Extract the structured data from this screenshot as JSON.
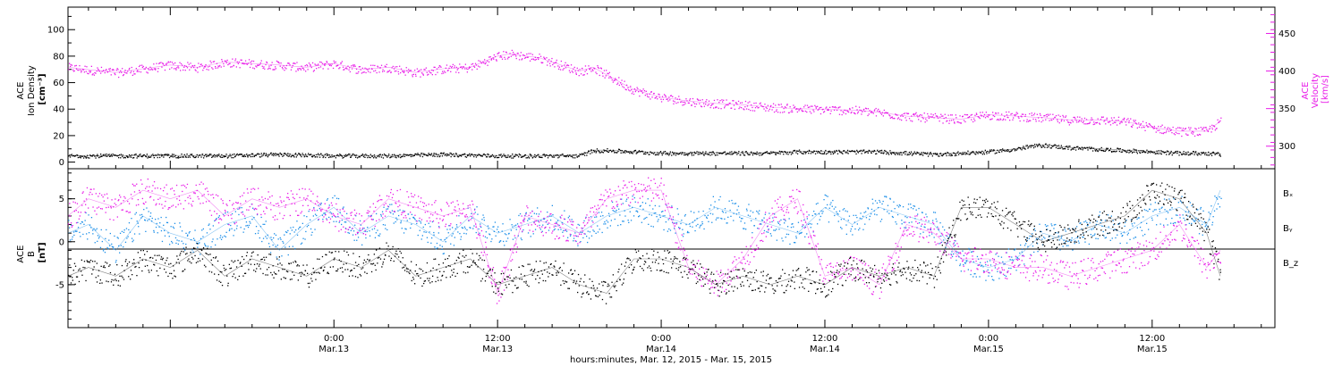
{
  "figure": {
    "xlabel": "hours:minutes, Mar. 12, 2015 - Mar. 15, 2015"
  },
  "chart_data": [
    {
      "type": "scatter",
      "panel": "top",
      "ylabel_left": [
        "ACE",
        "Ion Density",
        "[cm⁻³]"
      ],
      "ylabel_right": [
        "ACE",
        "Velocity",
        "[km/s]"
      ],
      "x_unit": "hours since 2015-03-12 00:00",
      "xlim": [
        4.5,
        93
      ],
      "y_left_lim": [
        -5,
        117
      ],
      "y_left_ticks": [
        "0",
        "20",
        "40",
        "60",
        "80",
        "100"
      ],
      "y_right_lim": [
        270,
        485
      ],
      "y_right_ticks": [
        "300",
        "350",
        "400",
        "450"
      ],
      "x_ticks": [
        {
          "value": 24,
          "time": "0:00",
          "date": "Mar.13"
        },
        {
          "value": 36,
          "time": "12:00",
          "date": "Mar.13"
        },
        {
          "value": 48,
          "time": "0:00",
          "date": "Mar.14"
        },
        {
          "value": 60,
          "time": "12:00",
          "date": "Mar.14"
        },
        {
          "value": 72,
          "time": "0:00",
          "date": "Mar.15"
        },
        {
          "value": 84,
          "time": "12:00",
          "date": "Mar.15"
        }
      ],
      "series": [
        {
          "axis": "right",
          "color": "#e81be8",
          "x": [
            4.5,
            6,
            8,
            10,
            12,
            14,
            16,
            18,
            20,
            22,
            24,
            26,
            28,
            30,
            32,
            34,
            36,
            37,
            38,
            39,
            40,
            42,
            43,
            44,
            45,
            46,
            48,
            50,
            52,
            54,
            56,
            58,
            60,
            62,
            64,
            66,
            68,
            70,
            72,
            74,
            76,
            78,
            80,
            82,
            84,
            86,
            88,
            89
          ],
          "y": [
            405,
            402,
            398,
            403,
            408,
            405,
            412,
            410,
            408,
            405,
            410,
            402,
            405,
            398,
            403,
            405,
            420,
            423,
            420,
            418,
            412,
            400,
            405,
            395,
            385,
            375,
            365,
            360,
            357,
            355,
            352,
            350,
            349,
            348,
            345,
            340,
            338,
            336,
            342,
            340,
            338,
            335,
            335,
            333,
            325,
            320,
            320,
            333
          ]
        },
        {
          "axis": "left",
          "color": "#000000",
          "x": [
            4.5,
            8,
            12,
            16,
            20,
            24,
            28,
            32,
            36,
            40,
            42,
            43,
            44,
            46,
            48,
            52,
            56,
            58,
            60,
            64,
            68,
            70,
            72,
            74,
            75,
            76,
            77,
            78,
            80,
            82,
            84,
            86,
            88,
            89
          ],
          "y": [
            5,
            5,
            5,
            5,
            6,
            5,
            5,
            6,
            5,
            5,
            5,
            9,
            9,
            8,
            7,
            7,
            7,
            8,
            8,
            8,
            6,
            7,
            8,
            10,
            12,
            13,
            12,
            11,
            10,
            9,
            8,
            7,
            7,
            6
          ]
        }
      ]
    },
    {
      "type": "scatter",
      "panel": "bottom",
      "ylabel_left": [
        "ACE",
        "B",
        "[nT]"
      ],
      "x_unit": "hours since 2015-03-12 00:00",
      "xlim": [
        4.5,
        93
      ],
      "ylim": [
        -10,
        8.5
      ],
      "y_ticks": [
        "-5",
        "0",
        "5"
      ],
      "legend_placement": "right",
      "series": [
        {
          "name": "Bₓ",
          "color": "#000000",
          "x": [
            4.5,
            6,
            8,
            10,
            12,
            14,
            16,
            18,
            20,
            22,
            24,
            26,
            28,
            30,
            32,
            34,
            36,
            38,
            40,
            42,
            44,
            46,
            48,
            50,
            52,
            54,
            56,
            58,
            60,
            62,
            64,
            66,
            68,
            70,
            72,
            74,
            76,
            78,
            80,
            82,
            84,
            86,
            88,
            89
          ],
          "y": [
            -4,
            -3,
            -4,
            -2,
            -3,
            -1,
            -4,
            -2,
            -3,
            -4,
            -2,
            -3,
            -1,
            -4,
            -3,
            -2,
            -5,
            -4,
            -3,
            -5,
            -6,
            -2,
            -2,
            -3,
            -5,
            -4,
            -5,
            -4,
            -5,
            -3,
            -4,
            -3,
            -4,
            4,
            4,
            2,
            0,
            1,
            2,
            3,
            6,
            5,
            1,
            -4
          ]
        },
        {
          "name": "Bᵧ",
          "color": "#1a8ee8",
          "x": [
            4.5,
            6,
            8,
            10,
            12,
            14,
            16,
            18,
            20,
            22,
            24,
            26,
            28,
            30,
            32,
            34,
            36,
            38,
            40,
            42,
            44,
            46,
            48,
            50,
            52,
            54,
            56,
            58,
            60,
            62,
            64,
            66,
            68,
            70,
            72,
            74,
            76,
            78,
            80,
            82,
            84,
            86,
            88,
            89
          ],
          "y": [
            1,
            2,
            -1,
            3,
            1,
            0,
            2,
            3,
            -1,
            2,
            4,
            1,
            3,
            2,
            0,
            3,
            1,
            2,
            3,
            1,
            3,
            4,
            3,
            2,
            4,
            3,
            2,
            1,
            4,
            2,
            4,
            3,
            2,
            -2,
            -3,
            -2,
            1,
            0,
            2,
            1,
            3,
            4,
            2,
            6
          ]
        },
        {
          "name": "B_z",
          "color": "#e81be8",
          "x": [
            4.5,
            6,
            8,
            10,
            12,
            14,
            16,
            18,
            20,
            22,
            24,
            26,
            28,
            30,
            32,
            34,
            36,
            38,
            40,
            42,
            44,
            46,
            48,
            50,
            52,
            54,
            56,
            58,
            60,
            62,
            64,
            66,
            68,
            70,
            72,
            74,
            76,
            78,
            80,
            82,
            84,
            86,
            88,
            89
          ],
          "y": [
            3,
            5,
            4,
            6,
            5,
            6,
            3,
            5,
            4,
            5,
            3,
            2,
            5,
            4,
            3,
            4,
            -6,
            3,
            2,
            1,
            5,
            6,
            6,
            -3,
            -5,
            -2,
            3,
            5,
            -4,
            -3,
            -5,
            2,
            1,
            -2,
            -2,
            -3,
            -3,
            -4,
            -3,
            -2,
            -1,
            2,
            -3,
            -1
          ]
        }
      ]
    }
  ]
}
